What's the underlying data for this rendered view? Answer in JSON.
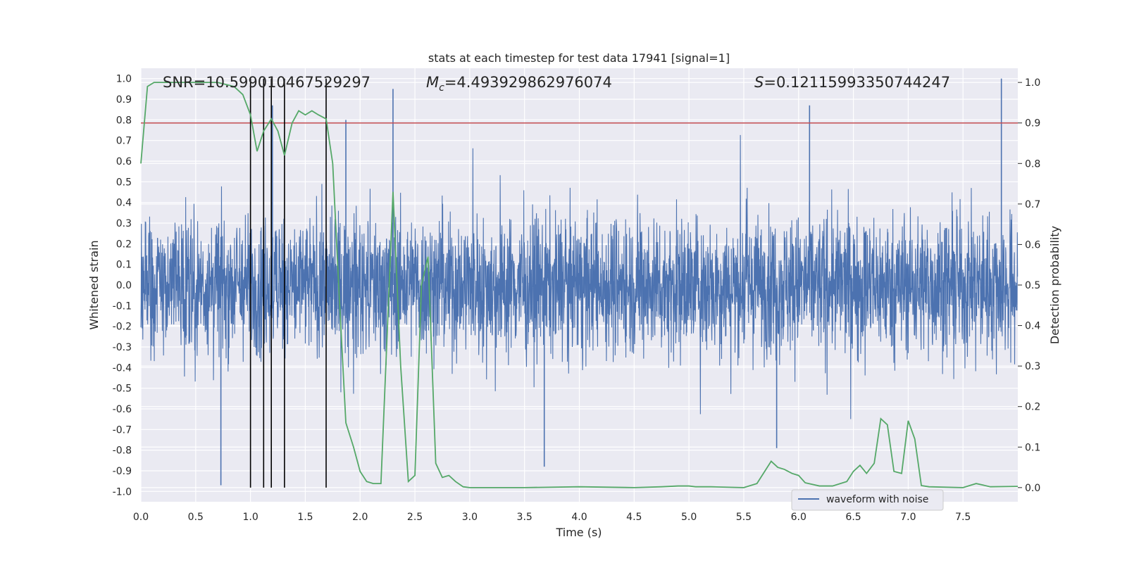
{
  "chart_data": {
    "type": "line",
    "title": "stats at each timestep for test data 17941 [signal=1]",
    "xlabel": "Time (s)",
    "ylabel": "Whitened strain",
    "y2label": "Detection probability",
    "xlim": [
      0.0,
      8.0
    ],
    "ylim": [
      -1.05,
      1.05
    ],
    "y2lim": [
      -0.035,
      1.035
    ],
    "xticks": [
      "0.0",
      "0.5",
      "1.0",
      "1.5",
      "2.0",
      "2.5",
      "3.0",
      "3.5",
      "4.0",
      "4.5",
      "5.0",
      "5.5",
      "6.0",
      "6.5",
      "7.0",
      "7.5"
    ],
    "xtick_values": [
      0,
      0.5,
      1,
      1.5,
      2,
      2.5,
      3,
      3.5,
      4,
      4.5,
      5,
      5.5,
      6,
      6.5,
      7,
      7.5
    ],
    "yticks": [
      "1.0",
      "0.9",
      "0.8",
      "0.7",
      "0.6",
      "0.5",
      "0.4",
      "0.3",
      "0.2",
      "0.1",
      "0.0",
      "-0.1",
      "-0.2",
      "-0.3",
      "-0.4",
      "-0.5",
      "-0.6",
      "-0.7",
      "-0.8",
      "-0.9",
      "-1.0"
    ],
    "ytick_values": [
      1,
      0.9,
      0.8,
      0.7,
      0.6,
      0.5,
      0.4,
      0.3,
      0.2,
      0.1,
      0,
      -0.1,
      -0.2,
      -0.3,
      -0.4,
      -0.5,
      -0.6,
      -0.7,
      -0.8,
      -0.9,
      -1.0
    ],
    "y2ticks": [
      "1.0",
      "0.9",
      "0.8",
      "0.7",
      "0.6",
      "0.5",
      "0.4",
      "0.3",
      "0.2",
      "0.1",
      "0.0"
    ],
    "y2tick_values": [
      1,
      0.9,
      0.8,
      0.7,
      0.6,
      0.5,
      0.4,
      0.3,
      0.2,
      0.1,
      0
    ],
    "annotations": {
      "snr": "SNR=10.599010467529297",
      "mc_prefix": "M",
      "mc_sub": "c",
      "mc_value": "=4.493929862976074",
      "s_prefix": "S",
      "s_value": "=0.12115993350744247"
    },
    "threshold": {
      "value": 0.9,
      "axis": "right",
      "color": "#c44e52"
    },
    "detection_times": [
      1.0,
      1.12,
      1.19,
      1.31,
      1.69
    ],
    "legend": {
      "label": "waveform with noise",
      "placement": "lower-right"
    },
    "series": [
      {
        "name": "waveform with noise",
        "axis": "left",
        "color": "#4c72b0",
        "kind": "noise-band",
        "note": "whitened strain sampled densely; typical range about ±0.4, spikes reaching about ±1.0",
        "typical_abs": 0.4,
        "max": 1.0,
        "min": -0.97,
        "peaks": [
          [
            0.73,
            -0.97
          ],
          [
            1.2,
            0.87
          ],
          [
            2.3,
            0.95
          ],
          [
            3.68,
            -0.88
          ],
          [
            6.1,
            0.87
          ],
          [
            7.85,
            1.0
          ],
          [
            1.87,
            0.8
          ],
          [
            5.8,
            -0.79
          ]
        ]
      },
      {
        "name": "detection probability",
        "axis": "right",
        "color": "#55a868",
        "x": [
          0.0,
          0.06,
          0.12,
          0.3,
          0.5,
          0.7,
          0.85,
          0.93,
          1.0,
          1.06,
          1.12,
          1.19,
          1.25,
          1.31,
          1.38,
          1.44,
          1.5,
          1.56,
          1.62,
          1.69,
          1.75,
          1.81,
          1.87,
          1.94,
          2.0,
          2.06,
          2.12,
          2.19,
          2.25,
          2.3,
          2.37,
          2.44,
          2.5,
          2.56,
          2.62,
          2.69,
          2.75,
          2.81,
          2.87,
          2.94,
          3.0,
          3.5,
          4.0,
          4.5,
          4.75,
          4.9,
          5.0,
          5.06,
          5.2,
          5.5,
          5.62,
          5.75,
          5.81,
          5.87,
          5.94,
          6.0,
          6.06,
          6.19,
          6.31,
          6.44,
          6.5,
          6.56,
          6.62,
          6.69,
          6.75,
          6.81,
          6.87,
          6.94,
          7.0,
          7.06,
          7.12,
          7.19,
          7.5,
          7.62,
          7.75,
          8.0
        ],
        "values": [
          0.8,
          0.99,
          1.0,
          1.0,
          1.0,
          1.0,
          0.99,
          0.97,
          0.92,
          0.83,
          0.88,
          0.91,
          0.88,
          0.82,
          0.9,
          0.93,
          0.92,
          0.93,
          0.92,
          0.91,
          0.8,
          0.47,
          0.16,
          0.1,
          0.04,
          0.015,
          0.01,
          0.01,
          0.4,
          0.73,
          0.3,
          0.015,
          0.03,
          0.5,
          0.57,
          0.06,
          0.025,
          0.03,
          0.015,
          0.002,
          0.0,
          0.0,
          0.002,
          0.0,
          0.002,
          0.004,
          0.004,
          0.002,
          0.002,
          0.0,
          0.01,
          0.065,
          0.05,
          0.045,
          0.035,
          0.03,
          0.012,
          0.004,
          0.004,
          0.015,
          0.04,
          0.055,
          0.035,
          0.06,
          0.17,
          0.155,
          0.04,
          0.035,
          0.165,
          0.12,
          0.005,
          0.002,
          0.0,
          0.01,
          0.002,
          0.003
        ]
      }
    ]
  }
}
